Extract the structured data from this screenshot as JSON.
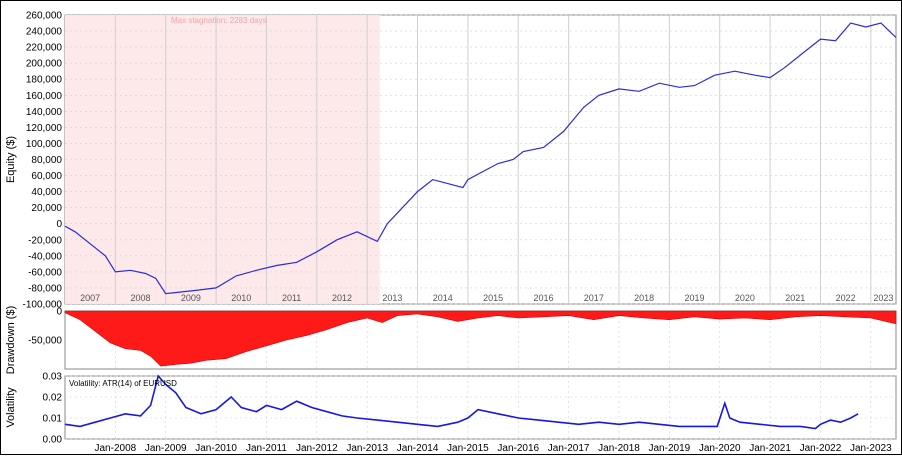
{
  "colors": {
    "equity_line": "#2b2bdc",
    "drawdown_fill": "#ff1a1a",
    "volatility_line": "#1717e6",
    "stagnation_fill": "#fde9e9",
    "stagnation_text": "#f2a5a5",
    "grid": "#d0d0d0",
    "year_band": "#efefef"
  },
  "chart_data": [
    {
      "type": "line",
      "panel": "equity",
      "ylabel": "Equity ($)",
      "ylim": [
        -100000,
        260000
      ],
      "yticks": [
        -100000,
        -80000,
        -60000,
        -40000,
        -20000,
        0,
        20000,
        40000,
        60000,
        80000,
        100000,
        120000,
        140000,
        160000,
        180000,
        200000,
        220000,
        240000,
        260000
      ],
      "ytick_labels": [
        "-100,000",
        "-80,000",
        "-60,000",
        "-40,000",
        "-20,000",
        "0",
        "20,000",
        "40,000",
        "60,000",
        "80,000",
        "100,000",
        "120,000",
        "140,000",
        "160,000",
        "180,000",
        "200,000",
        "220,000",
        "240,000",
        "260,000"
      ],
      "xlim": [
        2007.0,
        2023.5
      ],
      "year_labels": [
        "2007",
        "2008",
        "2009",
        "2010",
        "2011",
        "2012",
        "2013",
        "2014",
        "2015",
        "2016",
        "2017",
        "2018",
        "2019",
        "2020",
        "2021",
        "2022",
        "2023"
      ],
      "annotation": "Max stagnation: 2283 days",
      "stagnation_period": [
        2007.0,
        2013.25
      ],
      "series": [
        {
          "x": [
            2007.0,
            2007.2,
            2007.5,
            2007.8,
            2008.0,
            2008.3,
            2008.6,
            2008.8,
            2009.0,
            2009.3,
            2009.6,
            2010.0,
            2010.4,
            2010.8,
            2011.2,
            2011.6,
            2012.0,
            2012.4,
            2012.8,
            2013.2,
            2013.4,
            2013.7,
            2014.0,
            2014.3,
            2014.6,
            2014.9,
            2015.0,
            2015.3,
            2015.6,
            2015.9,
            2016.1,
            2016.5,
            2016.9,
            2017.3,
            2017.6,
            2018.0,
            2018.4,
            2018.8,
            2019.2,
            2019.5,
            2019.9,
            2020.3,
            2020.7,
            2021.0,
            2021.3,
            2021.7,
            2022.0,
            2022.3,
            2022.6,
            2022.9,
            2023.2,
            2023.5
          ],
          "y": [
            -3000,
            -10000,
            -25000,
            -40000,
            -60000,
            -58000,
            -62000,
            -68000,
            -87000,
            -85000,
            -83000,
            -80000,
            -65000,
            -58000,
            -52000,
            -48000,
            -35000,
            -20000,
            -10000,
            -22000,
            0,
            20000,
            40000,
            55000,
            50000,
            45000,
            55000,
            65000,
            75000,
            80000,
            90000,
            95000,
            115000,
            145000,
            160000,
            168000,
            165000,
            175000,
            170000,
            172000,
            185000,
            190000,
            185000,
            182000,
            195000,
            215000,
            230000,
            228000,
            250000,
            245000,
            250000,
            232000
          ]
        }
      ]
    },
    {
      "type": "area",
      "panel": "drawdown",
      "ylabel": "Drawdown ($)",
      "ylim": [
        -100000,
        0
      ],
      "ytick_labels": [
        "0",
        "-50,000"
      ],
      "series": [
        {
          "x": [
            2007.0,
            2007.3,
            2007.6,
            2007.9,
            2008.2,
            2008.5,
            2008.7,
            2008.9,
            2009.2,
            2009.5,
            2009.8,
            2010.2,
            2010.6,
            2011.0,
            2011.4,
            2011.8,
            2012.2,
            2012.6,
            2013.0,
            2013.3,
            2013.6,
            2014.0,
            2014.4,
            2014.8,
            2015.2,
            2015.6,
            2016.0,
            2016.5,
            2017.0,
            2017.5,
            2018.0,
            2018.5,
            2019.0,
            2019.5,
            2020.0,
            2020.5,
            2021.0,
            2021.5,
            2022.0,
            2022.5,
            2023.0,
            2023.5
          ],
          "y": [
            -3000,
            -15000,
            -35000,
            -55000,
            -65000,
            -68000,
            -78000,
            -95000,
            -92000,
            -90000,
            -85000,
            -82000,
            -70000,
            -60000,
            -50000,
            -42000,
            -32000,
            -20000,
            -12000,
            -20000,
            -8000,
            -5000,
            -10000,
            -18000,
            -12000,
            -8000,
            -12000,
            -10000,
            -8000,
            -15000,
            -8000,
            -12000,
            -15000,
            -10000,
            -14000,
            -12000,
            -15000,
            -10000,
            -8000,
            -10000,
            -12000,
            -22000
          ]
        }
      ]
    },
    {
      "type": "line",
      "panel": "volatility",
      "ylabel": "Volatility",
      "legend": "Volatility: ATR(14) of EURUSD",
      "ylim": [
        0,
        0.03
      ],
      "ytick_labels": [
        "0.03",
        "0.02",
        "0.01",
        "0.00"
      ],
      "x_month_labels": [
        "Jan-2008",
        "Jan-2009",
        "Jan-2010",
        "Jan-2011",
        "Jan-2012",
        "Jan-2013",
        "Jan-2014",
        "Jan-2015",
        "Jan-2016",
        "Jan-2017",
        "Jan-2018",
        "Jan-2019",
        "Jan-2020",
        "Jan-2021",
        "Jan-2022",
        "Jan-2023"
      ],
      "series": [
        {
          "x": [
            2007.0,
            2007.3,
            2007.6,
            2007.9,
            2008.2,
            2008.5,
            2008.7,
            2008.85,
            2009.0,
            2009.2,
            2009.4,
            2009.7,
            2010.0,
            2010.3,
            2010.5,
            2010.8,
            2011.0,
            2011.3,
            2011.6,
            2011.9,
            2012.2,
            2012.5,
            2012.8,
            2013.2,
            2013.6,
            2014.0,
            2014.4,
            2014.8,
            2015.0,
            2015.2,
            2015.6,
            2016.0,
            2016.4,
            2016.8,
            2017.2,
            2017.6,
            2018.0,
            2018.4,
            2018.8,
            2019.2,
            2019.6,
            2019.95,
            2020.1,
            2020.2,
            2020.4,
            2020.8,
            2021.2,
            2021.6,
            2021.9,
            2022.0,
            2022.2,
            2022.4,
            2022.6,
            2022.75
          ],
          "y": [
            0.007,
            0.006,
            0.008,
            0.01,
            0.012,
            0.011,
            0.016,
            0.03,
            0.026,
            0.022,
            0.015,
            0.012,
            0.014,
            0.02,
            0.015,
            0.013,
            0.016,
            0.014,
            0.018,
            0.015,
            0.013,
            0.011,
            0.01,
            0.009,
            0.008,
            0.007,
            0.006,
            0.008,
            0.01,
            0.014,
            0.012,
            0.01,
            0.009,
            0.008,
            0.007,
            0.008,
            0.007,
            0.008,
            0.007,
            0.006,
            0.006,
            0.006,
            0.017,
            0.01,
            0.008,
            0.007,
            0.006,
            0.006,
            0.005,
            0.007,
            0.009,
            0.008,
            0.01,
            0.012
          ]
        }
      ]
    }
  ]
}
